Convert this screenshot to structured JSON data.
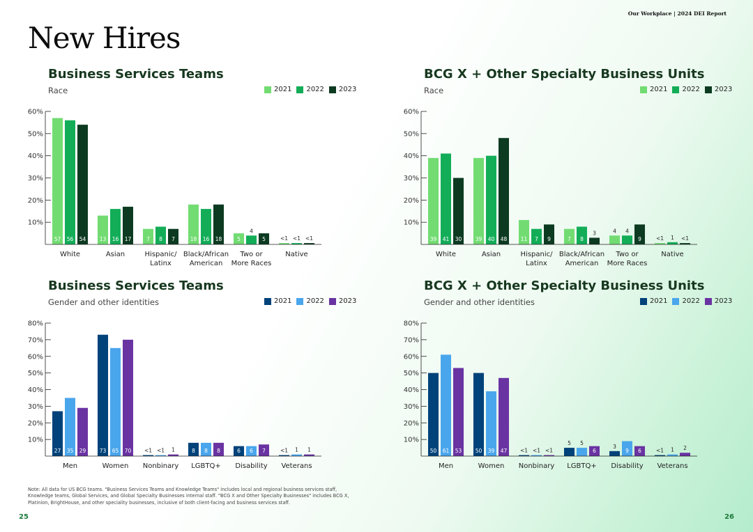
{
  "header": {
    "section_label": "Our Workplace | 2024 DEI Report"
  },
  "page_title": "New Hires",
  "footnote": "Note: All data for US BCG teams. \"Business Services Teams and Knowledge Teams\" includes local and regional business services staff, Knowledge teams, Global Services, and Global Specialty Businesses internal staff. \"BCG X and Other Specialty Businesses\" includes BCG X, Platinion, BrightHouse, and other speciality businesses, inclusive of both client-facing and business services staff.",
  "page_numbers": {
    "left": "25",
    "right": "26"
  },
  "palettes": {
    "green": [
      "#72dc72",
      "#13ad58",
      "#0c3b21"
    ],
    "blue": [
      "#00427a",
      "#4aa6ec",
      "#6a33a2"
    ]
  },
  "chart_data": [
    {
      "type": "bar",
      "title": "Business Services Teams",
      "subtitle": "Race",
      "palette": "green",
      "ylim": [
        0,
        60
      ],
      "yticks": [
        "10%",
        "20%",
        "30%",
        "40%",
        "50%",
        "60%"
      ],
      "categories": [
        [
          "White"
        ],
        [
          "Asian"
        ],
        [
          "Hispanic/",
          "Latinx"
        ],
        [
          "Black/African",
          "American"
        ],
        [
          "Two or",
          "More Races"
        ],
        [
          "Native"
        ]
      ],
      "series": [
        {
          "name": "2021",
          "values": [
            57,
            13,
            7,
            18,
            5,
            0.4
          ],
          "labels": [
            "57",
            "13",
            "7",
            "18",
            "5",
            "<1"
          ]
        },
        {
          "name": "2022",
          "values": [
            56,
            16,
            8,
            16,
            4,
            0.4
          ],
          "labels": [
            "56",
            "16",
            "8",
            "16",
            "4",
            "<1"
          ]
        },
        {
          "name": "2023",
          "values": [
            54,
            17,
            7,
            18,
            5,
            0.4
          ],
          "labels": [
            "54",
            "17",
            "7",
            "18",
            "5",
            "<1"
          ]
        }
      ]
    },
    {
      "type": "bar",
      "title": "BCG X + Other Specialty Business Units",
      "subtitle": "Race",
      "palette": "green",
      "ylim": [
        0,
        60
      ],
      "yticks": [
        "10%",
        "20%",
        "30%",
        "40%",
        "50%",
        "60%"
      ],
      "categories": [
        [
          "White"
        ],
        [
          "Asian"
        ],
        [
          "Hispanic/",
          "Latinx"
        ],
        [
          "Black/African",
          "American"
        ],
        [
          "Two or",
          "More Races"
        ],
        [
          "Native"
        ]
      ],
      "series": [
        {
          "name": "2021",
          "values": [
            39,
            39,
            11,
            7,
            4,
            0.4
          ],
          "labels": [
            "39",
            "39",
            "11",
            "7",
            "4",
            "<1"
          ]
        },
        {
          "name": "2022",
          "values": [
            41,
            40,
            7,
            8,
            4,
            1
          ],
          "labels": [
            "41",
            "40",
            "7",
            "8",
            "4",
            "1"
          ]
        },
        {
          "name": "2023",
          "values": [
            30,
            48,
            9,
            3,
            9,
            0.4
          ],
          "labels": [
            "30",
            "48",
            "9",
            "3",
            "9",
            "<1"
          ]
        }
      ]
    },
    {
      "type": "bar",
      "title": "Business Services Teams",
      "subtitle": "Gender and other identities",
      "palette": "blue",
      "ylim": [
        0,
        80
      ],
      "yticks": [
        "10%",
        "20%",
        "30%",
        "40%",
        "50%",
        "60%",
        "70%",
        "80%"
      ],
      "categories": [
        [
          "Men"
        ],
        [
          "Women"
        ],
        [
          "Nonbinary"
        ],
        [
          "LGBTQ+"
        ],
        [
          "Disability"
        ],
        [
          "Veterans"
        ]
      ],
      "series": [
        {
          "name": "2021",
          "values": [
            27,
            73,
            0.4,
            8,
            6,
            0.4
          ],
          "labels": [
            "27",
            "73",
            "<1",
            "8",
            "6",
            "<1"
          ]
        },
        {
          "name": "2022",
          "values": [
            35,
            65,
            0.4,
            8,
            6,
            1
          ],
          "labels": [
            "35",
            "65",
            "<1",
            "8",
            "6",
            "1"
          ]
        },
        {
          "name": "2023",
          "values": [
            29,
            70,
            1,
            8,
            7,
            1
          ],
          "labels": [
            "29",
            "70",
            "1",
            "8",
            "7",
            "1"
          ]
        }
      ]
    },
    {
      "type": "bar",
      "title": "BCG X + Other Specialty Business Units",
      "subtitle": "Gender and other identities",
      "palette": "blue",
      "ylim": [
        0,
        80
      ],
      "yticks": [
        "10%",
        "20%",
        "30%",
        "40%",
        "50%",
        "60%",
        "70%",
        "80%"
      ],
      "categories": [
        [
          "Men"
        ],
        [
          "Women"
        ],
        [
          "Nonbinary"
        ],
        [
          "LGBTQ+"
        ],
        [
          "Disability"
        ],
        [
          "Veterans"
        ]
      ],
      "series": [
        {
          "name": "2021",
          "values": [
            50,
            50,
            0.4,
            5,
            3,
            0.4
          ],
          "labels": [
            "50",
            "50",
            "<1",
            "5",
            "3",
            "<1"
          ]
        },
        {
          "name": "2022",
          "values": [
            61,
            39,
            0.4,
            5,
            9,
            1
          ],
          "labels": [
            "61",
            "39",
            "<1",
            "5",
            "9",
            "1"
          ]
        },
        {
          "name": "2023",
          "values": [
            53,
            47,
            0.4,
            6,
            6,
            2
          ],
          "labels": [
            "53",
            "47",
            "<1",
            "6",
            "6",
            "2"
          ]
        }
      ]
    }
  ]
}
